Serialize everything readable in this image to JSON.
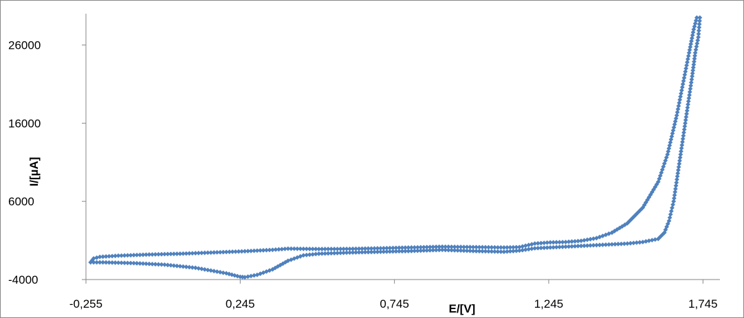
{
  "chart_data": {
    "type": "scatter",
    "title": "",
    "xlabel": "E/[V]",
    "ylabel": "I/[µA]",
    "xlim": [
      -0.255,
      1.8
    ],
    "ylim": [
      -4000,
      30000
    ],
    "x_ticks": [
      -0.255,
      0.245,
      0.745,
      1.245,
      1.745
    ],
    "x_tick_labels": [
      "-0,255",
      "0,245",
      "0,745",
      "1,245",
      "1,745"
    ],
    "y_ticks": [
      -4000,
      6000,
      16000,
      26000
    ],
    "y_tick_labels": [
      "-4000",
      "6000",
      "16000",
      "26000"
    ],
    "grid": false,
    "legend": "none",
    "series": [
      {
        "color": "#4F81BD",
        "marker": "diamond",
        "points": [
          [
            -0.24,
            -1800
          ],
          [
            -0.23,
            -1300
          ],
          [
            -0.21,
            -1100
          ],
          [
            -0.15,
            -950
          ],
          [
            -0.05,
            -800
          ],
          [
            0.05,
            -700
          ],
          [
            0.15,
            -550
          ],
          [
            0.25,
            -400
          ],
          [
            0.35,
            -200
          ],
          [
            0.4,
            -50
          ],
          [
            0.5,
            -100
          ],
          [
            0.6,
            -80
          ],
          [
            0.7,
            0
          ],
          [
            0.8,
            100
          ],
          [
            0.9,
            200
          ],
          [
            1.0,
            150
          ],
          [
            1.1,
            100
          ],
          [
            1.15,
            150
          ],
          [
            1.2,
            600
          ],
          [
            1.25,
            750
          ],
          [
            1.3,
            800
          ],
          [
            1.35,
            950
          ],
          [
            1.4,
            1300
          ],
          [
            1.45,
            2000
          ],
          [
            1.5,
            3200
          ],
          [
            1.55,
            5200
          ],
          [
            1.6,
            8500
          ],
          [
            1.63,
            12000
          ],
          [
            1.66,
            17000
          ],
          [
            1.68,
            21000
          ],
          [
            1.7,
            25000
          ],
          [
            1.715,
            28000
          ],
          [
            1.725,
            29500
          ],
          [
            1.735,
            29500
          ],
          [
            1.73,
            27000
          ],
          [
            1.72,
            25000
          ],
          [
            1.71,
            22000
          ],
          [
            1.695,
            18000
          ],
          [
            1.68,
            14000
          ],
          [
            1.665,
            10000
          ],
          [
            1.65,
            6000
          ],
          [
            1.635,
            3500
          ],
          [
            1.62,
            2000
          ],
          [
            1.6,
            1200
          ],
          [
            1.55,
            800
          ],
          [
            1.5,
            600
          ],
          [
            1.4,
            400
          ],
          [
            1.3,
            200
          ],
          [
            1.2,
            0
          ],
          [
            1.15,
            -300
          ],
          [
            1.1,
            -450
          ],
          [
            1.0,
            -350
          ],
          [
            0.9,
            -200
          ],
          [
            0.8,
            -350
          ],
          [
            0.7,
            -450
          ],
          [
            0.6,
            -550
          ],
          [
            0.5,
            -700
          ],
          [
            0.45,
            -900
          ],
          [
            0.4,
            -1600
          ],
          [
            0.35,
            -2700
          ],
          [
            0.3,
            -3400
          ],
          [
            0.26,
            -3700
          ],
          [
            0.245,
            -3650
          ],
          [
            0.2,
            -3200
          ],
          [
            0.1,
            -2500
          ],
          [
            0.0,
            -2100
          ],
          [
            -0.1,
            -1900
          ],
          [
            -0.2,
            -1800
          ],
          [
            -0.24,
            -1800
          ]
        ]
      }
    ]
  }
}
